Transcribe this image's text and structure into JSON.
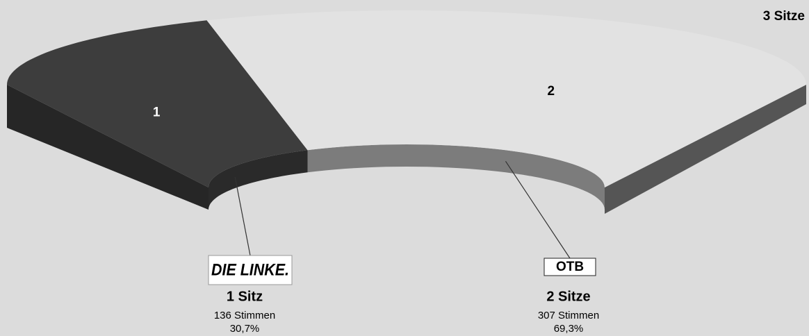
{
  "chart_data": {
    "type": "seats",
    "total": {
      "value": 3,
      "label": "3 Sitze"
    },
    "series": [
      {
        "name": "DIE LINKE.",
        "color": "#3d3d3d",
        "wall_color": "#2a2a2a",
        "seats": {
          "value": 1,
          "label": "1 Sitz"
        },
        "votes": {
          "value": 136,
          "label": "136 Stimmen"
        },
        "percent": {
          "value": 30.7,
          "label": "30,7%"
        }
      },
      {
        "name": "OTB",
        "color": "#e2e2e2",
        "wall_color": "#7c7c7c",
        "seats": {
          "value": 2,
          "label": "2 Sitze"
        },
        "votes": {
          "value": 307,
          "label": "307 Stimmen"
        },
        "percent": {
          "value": 69.3,
          "label": "69,3%"
        }
      }
    ]
  }
}
